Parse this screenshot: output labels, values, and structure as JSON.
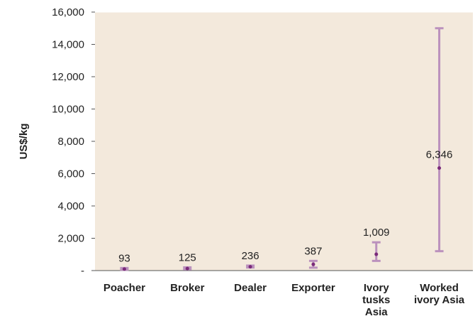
{
  "chart_data": {
    "type": "scatter",
    "ylabel": "US$/kg",
    "ylim": [
      0,
      16000
    ],
    "yticks": [
      0,
      2000,
      4000,
      6000,
      8000,
      10000,
      12000,
      14000,
      16000
    ],
    "ytick_labels": [
      "-",
      "2,000",
      "4,000",
      "6,000",
      "8,000",
      "10,000",
      "12,000",
      "14,000",
      "16,000"
    ],
    "categories": [
      [
        "Poacher"
      ],
      [
        "Broker"
      ],
      [
        "Dealer"
      ],
      [
        "Exporter"
      ],
      [
        "Ivory",
        "tusks",
        "Asia"
      ],
      [
        "Worked",
        "ivory Asia"
      ]
    ],
    "values": [
      93,
      125,
      236,
      387,
      1009,
      6346
    ],
    "value_labels": [
      "93",
      "125",
      "236",
      "387",
      "1,009",
      "6,346"
    ],
    "error_low": [
      50,
      80,
      190,
      180,
      600,
      1200
    ],
    "error_high": [
      160,
      200,
      310,
      600,
      1750,
      15000
    ],
    "grid": false,
    "colors": {
      "plot_background": "#f3e9dc",
      "error_bar": "#bb91bd",
      "point": "#7a2a7a"
    }
  }
}
